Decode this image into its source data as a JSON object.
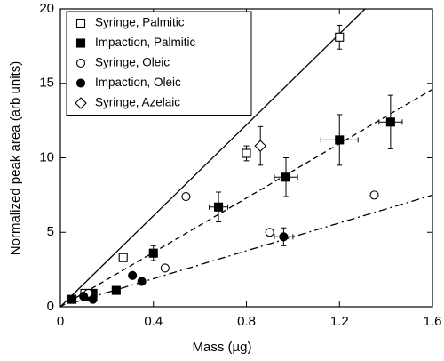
{
  "chart_data": {
    "type": "scatter",
    "x_label": "Mass (µg)",
    "y_label": "Normalized peak area (arb units)",
    "xlim": [
      0,
      1.6
    ],
    "ylim": [
      0,
      20
    ],
    "xticks": [
      0,
      0.4,
      0.8,
      1.2,
      1.6
    ],
    "yticks": [
      0,
      5,
      10,
      15,
      20
    ],
    "legend": "upper left",
    "series": [
      {
        "name": "Syringe, Palmitic",
        "marker": "square",
        "filled": false,
        "color": "#000000",
        "x": [
          0.105,
          0.27,
          0.8,
          1.2
        ],
        "values": [
          0.9,
          3.3,
          10.3,
          18.1
        ],
        "y_errors": [
          null,
          null,
          0.5,
          0.8
        ],
        "x_errors": [
          null,
          null,
          null,
          null
        ]
      },
      {
        "name": "Impaction, Palmitic",
        "marker": "square",
        "filled": true,
        "color": "#000000",
        "x": [
          0.05,
          0.11,
          0.14,
          0.24,
          0.4,
          0.68,
          0.97,
          1.2,
          1.42
        ],
        "values": [
          0.5,
          0.7,
          0.9,
          1.1,
          3.6,
          6.7,
          8.7,
          11.2,
          12.4
        ],
        "y_errors": [
          null,
          null,
          null,
          null,
          0.5,
          1.0,
          1.3,
          1.7,
          1.8
        ],
        "x_errors": [
          null,
          null,
          null,
          null,
          null,
          0.04,
          0.05,
          0.08,
          0.05
        ]
      },
      {
        "name": "Syringe, Oleic",
        "marker": "circle",
        "filled": false,
        "color": "#000000",
        "x": [
          0.12,
          0.45,
          0.54,
          0.9,
          1.35
        ],
        "values": [
          0.9,
          2.6,
          7.4,
          5.0,
          7.5
        ],
        "y_errors": [
          null,
          null,
          null,
          null,
          null
        ],
        "x_errors": [
          null,
          null,
          null,
          null,
          null
        ]
      },
      {
        "name": "Impaction, Oleic",
        "marker": "circle",
        "filled": true,
        "color": "#000000",
        "x": [
          0.1,
          0.14,
          0.31,
          0.35,
          0.96
        ],
        "values": [
          0.7,
          0.5,
          2.1,
          1.7,
          4.7
        ],
        "y_errors": [
          null,
          null,
          null,
          null,
          0.6
        ],
        "x_errors": [
          null,
          null,
          null,
          null,
          0.04
        ]
      },
      {
        "name": "Syringe, Azelaic",
        "marker": "diamond",
        "filled": false,
        "color": "#000000",
        "x": [
          0.86
        ],
        "values": [
          10.8
        ],
        "y_errors": [
          1.3
        ],
        "x_errors": [
          null
        ]
      }
    ],
    "fit_lines": [
      {
        "style": "solid",
        "x": [
          0,
          1.31
        ],
        "values": [
          0,
          20
        ]
      },
      {
        "style": "dashed",
        "x": [
          0,
          1.6
        ],
        "values": [
          0,
          14.6
        ]
      },
      {
        "style": "dashdot",
        "x": [
          0.05,
          1.6
        ],
        "values": [
          0.25,
          7.5
        ]
      }
    ]
  }
}
